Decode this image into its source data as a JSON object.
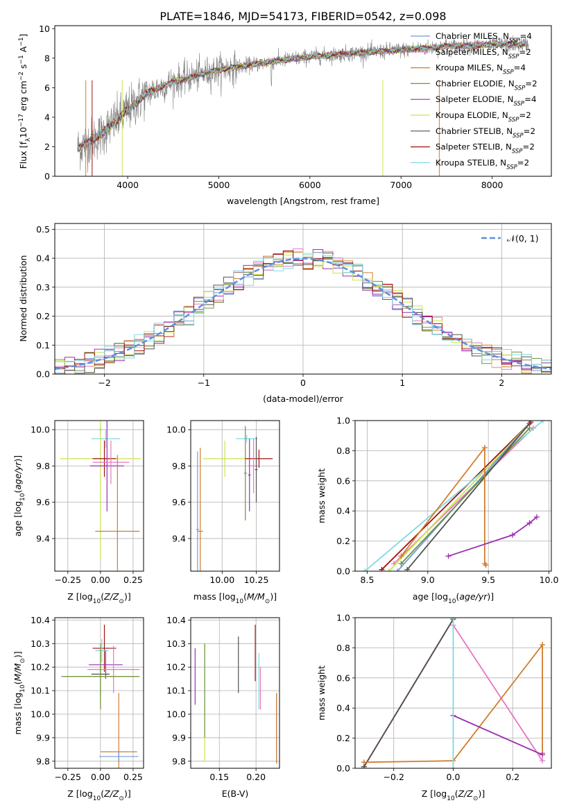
{
  "title": "PLATE=1846, MJD=54173, FIBERID=0542, z=0.098",
  "colors": {
    "Chabrier MILES": "#6f9bd8",
    "Salpeter MILES": "#e377c2",
    "Kroupa MILES": "#d07c2c",
    "Chabrier ELODIE": "#6f8f3f",
    "Salpeter ELODIE": "#9b2fb0",
    "Kroupa ELODIE": "#c8e64a",
    "Chabrier STELIB": "#505050",
    "Salpeter STELIB": "#a01010",
    "Kroupa STELIB": "#80d8e0",
    "data": "#808080",
    "normal": "#5b8fe0"
  },
  "legend_spectrum": [
    {
      "name": "Chabrier MILES",
      "nssp": "4"
    },
    {
      "name": "Salpeter MILES",
      "nssp": "2"
    },
    {
      "name": "Kroupa MILES",
      "nssp": "4"
    },
    {
      "name": "Chabrier ELODIE",
      "nssp": "2"
    },
    {
      "name": "Salpeter ELODIE",
      "nssp": "4"
    },
    {
      "name": "Kroupa ELODIE",
      "nssp": "2"
    },
    {
      "name": "Chabrier STELIB",
      "nssp": "2"
    },
    {
      "name": "Salpeter STELIB",
      "nssp": "2"
    },
    {
      "name": "Kroupa STELIB",
      "nssp": "2"
    }
  ],
  "chart_data": [
    {
      "id": "spectrum",
      "type": "line",
      "xlabel": "wavelength [Angstrom, rest frame]",
      "ylabel": "Flux [f_λ 10^-17 erg cm^-2 s^-1 A^-1]",
      "xlim": [
        3200,
        8650
      ],
      "ylim": [
        0,
        10.2
      ],
      "xticks": [
        4000,
        5000,
        6000,
        7000,
        8000
      ],
      "yticks": [
        0,
        2,
        4,
        6,
        8,
        10
      ],
      "grid": false,
      "legend_position": "right",
      "continuum": {
        "x": [
          3450,
          3700,
          3950,
          4200,
          4500,
          5000,
          5500,
          6000,
          6500,
          7000,
          7500,
          8000,
          8400
        ],
        "y": [
          1.9,
          2.8,
          4.2,
          5.6,
          6.4,
          7.2,
          7.7,
          8.1,
          8.35,
          8.55,
          8.8,
          8.9,
          8.95
        ]
      }
    },
    {
      "id": "residuals",
      "type": "area",
      "xlabel": "(data-model)/error",
      "ylabel": "Normed distribution",
      "xlim": [
        -2.5,
        2.5
      ],
      "ylim": [
        0,
        0.52
      ],
      "xticks": [
        -2,
        -1,
        0,
        1,
        2
      ],
      "yticks": [
        0.0,
        0.1,
        0.2,
        0.3,
        0.4,
        0.5
      ],
      "grid": true,
      "legend_position": "top-right",
      "legend": "𝒩(0, 1)",
      "bin_width": 0.1
    },
    {
      "id": "age_vs_Z",
      "type": "scatter",
      "xlabel": "Z [log10(Z/Z⊙)]",
      "ylabel": "age  [log10(age/yr)]",
      "xlim": [
        -0.35,
        0.33
      ],
      "ylim": [
        9.22,
        10.05
      ],
      "xticks": [
        -0.25,
        0.0,
        0.25
      ],
      "yticks": [
        9.4,
        9.6,
        9.8,
        10.0
      ],
      "grid": true,
      "points": [
        {
          "model": "Chabrier MILES",
          "x": 0.0,
          "xerr": 0.01,
          "y": 10.0,
          "yerr": 0.02
        },
        {
          "model": "Kroupa STELIB",
          "x": 0.04,
          "xerr": 0.11,
          "y": 9.95,
          "yerr": 0.05
        },
        {
          "model": "Kroupa ELODIE",
          "x": 0.0,
          "xerr": 0.31,
          "y": 9.84,
          "yerr": 0.56
        },
        {
          "model": "Salpeter STELIB",
          "x": 0.03,
          "xerr": 0.09,
          "y": 9.84,
          "yerr": 0.1
        },
        {
          "model": "Salpeter ELODIE",
          "x": 0.05,
          "xerr": 0.13,
          "y": 9.8,
          "yerr": 0.25
        },
        {
          "model": "Salpeter MILES",
          "x": 0.08,
          "xerr": 0.14,
          "y": 9.82,
          "yerr": 0.12
        },
        {
          "model": "Kroupa MILES",
          "x": 0.13,
          "xerr": 0.17,
          "y": 9.44,
          "yerr": 0.42
        }
      ]
    },
    {
      "id": "age_vs_mass",
      "type": "scatter",
      "xlabel": "mass [log10(M/M⊙)]",
      "ylabel": "",
      "xlim": [
        9.77,
        10.42
      ],
      "ylim": [
        9.22,
        10.05
      ],
      "xticks": [
        10.0,
        10.25
      ],
      "yticks": [
        9.4,
        9.6,
        9.8,
        10.0
      ],
      "grid": true,
      "points": [
        {
          "model": "Chabrier MILES",
          "x": 9.82,
          "xerr": 0.01,
          "y": 9.45,
          "yerr": 0.43
        },
        {
          "model": "Kroupa MILES",
          "x": 9.84,
          "xerr": 0.02,
          "y": 9.44,
          "yerr": 0.46
        },
        {
          "model": "Kroupa ELODIE",
          "x": 10.02,
          "xerr": 0.16,
          "y": 9.84,
          "yerr": 0.1
        },
        {
          "model": "Kroupa STELIB",
          "x": 10.18,
          "xerr": 0.08,
          "y": 9.95,
          "yerr": 0.02
        },
        {
          "model": "Chabrier ELODIE",
          "x": 10.17,
          "xerr": 0.01,
          "y": 9.76,
          "yerr": 0.26
        },
        {
          "model": "Salpeter STELIB",
          "x": 10.27,
          "xerr": 0.1,
          "y": 9.84,
          "yerr": 0.05
        },
        {
          "model": "Salpeter ELODIE",
          "x": 10.2,
          "xerr": 0.01,
          "y": 9.75,
          "yerr": 0.2
        },
        {
          "model": "Salpeter MILES",
          "x": 10.23,
          "xerr": 0.04,
          "y": 9.8,
          "yerr": 0.15
        },
        {
          "model": "Chabrier STELIB",
          "x": 10.25,
          "xerr": 0.01,
          "y": 9.78,
          "yerr": 0.18
        }
      ]
    },
    {
      "id": "massweight_vs_age",
      "type": "line",
      "xlabel": "age  [log10(age/yr)]",
      "ylabel": "mass weight",
      "xlim": [
        8.4,
        10.02
      ],
      "ylim": [
        0,
        1
      ],
      "xticks": [
        8.5,
        9.0,
        9.5,
        10.0
      ],
      "yticks": [
        0.0,
        0.2,
        0.4,
        0.6,
        0.8,
        1.0
      ],
      "grid": true,
      "series": [
        {
          "model": "Salpeter STELIB",
          "x": [
            8.62,
            9.85
          ],
          "y": [
            0.01,
            0.99
          ]
        },
        {
          "model": "Salpeter MILES",
          "x": [
            8.72,
            9.87
          ],
          "y": [
            0.05,
            0.95
          ]
        },
        {
          "model": "Kroupa STELIB",
          "x": [
            8.48,
            9.95
          ],
          "y": [
            0.0,
            1.0
          ]
        },
        {
          "model": "Kroupa ELODIE",
          "x": [
            8.68,
            9.84
          ],
          "y": [
            0.0,
            0.98
          ]
        },
        {
          "model": "Chabrier MILES",
          "x": [
            8.75,
            9.84
          ],
          "y": [
            0.0,
            0.98
          ]
        },
        {
          "model": "Chabrier ELODIE",
          "x": [
            8.78,
            9.84
          ],
          "y": [
            0.05,
            0.95
          ]
        },
        {
          "model": "Chabrier STELIB",
          "x": [
            8.83,
            9.84
          ],
          "y": [
            0.01,
            0.98
          ]
        },
        {
          "model": "Kroupa MILES",
          "x": [
            8.78,
            9.47,
            9.47,
            9.48
          ],
          "y": [
            0.1,
            0.82,
            0.05,
            0.04
          ]
        },
        {
          "model": "Salpeter ELODIE",
          "x": [
            9.17,
            9.7,
            9.84,
            9.9
          ],
          "y": [
            0.1,
            0.24,
            0.32,
            0.36
          ]
        }
      ]
    },
    {
      "id": "mass_vs_Z",
      "type": "scatter",
      "xlabel": "Z [log10(Z/Z⊙)]",
      "ylabel": "mass [log10(M/M⊙)]",
      "xlim": [
        -0.35,
        0.33
      ],
      "ylim": [
        9.77,
        10.41
      ],
      "xticks": [
        -0.25,
        0.0,
        0.25
      ],
      "yticks": [
        9.8,
        9.9,
        10.0,
        10.1,
        10.2,
        10.3,
        10.4
      ],
      "grid": true,
      "points": [
        {
          "model": "Salpeter STELIB",
          "x": 0.03,
          "xerr": 0.09,
          "y": 10.28,
          "yerr": 0.1
        },
        {
          "model": "Kroupa STELIB",
          "x": 0.01,
          "xerr": 0.05,
          "y": 10.27,
          "yerr": 0.05
        },
        {
          "model": "Salpeter ELODIE",
          "x": 0.04,
          "xerr": 0.13,
          "y": 10.21,
          "yerr": 0.06
        },
        {
          "model": "Salpeter MILES",
          "x": 0.1,
          "xerr": 0.2,
          "y": 10.19,
          "yerr": 0.1
        },
        {
          "model": "Chabrier STELIB",
          "x": 0.0,
          "xerr": 0.07,
          "y": 10.17,
          "yerr": 0.1
        },
        {
          "model": "Kroupa ELODIE",
          "x": 0.0,
          "xerr": 0.28,
          "y": 10.16,
          "yerr": 0.12
        },
        {
          "model": "Chabrier ELODIE",
          "x": 0.0,
          "xerr": 0.3,
          "y": 10.16,
          "yerr": 0.14
        },
        {
          "model": "Kroupa MILES",
          "x": 0.14,
          "xerr": 0.14,
          "y": 9.84,
          "yerr": 0.25
        },
        {
          "model": "Chabrier MILES",
          "x": 0.14,
          "xerr": 0.15,
          "y": 9.82,
          "yerr": 0.02
        }
      ]
    },
    {
      "id": "mass_vs_EBV",
      "type": "scatter",
      "xlabel": "E(B-V)",
      "ylabel": "",
      "xlim": [
        0.111,
        0.232
      ],
      "ylim": [
        9.77,
        10.41
      ],
      "xticks": [
        0.15,
        0.2
      ],
      "yticks": [
        9.8,
        9.9,
        10.0,
        10.1,
        10.2,
        10.3,
        10.4
      ],
      "grid": true,
      "points": [
        {
          "model": "Salpeter ELODIE",
          "x": 0.117,
          "y": 10.16,
          "yerr": 0.12
        },
        {
          "model": "Kroupa ELODIE",
          "x": 0.13,
          "y": 10.05,
          "yerr": 0.25
        },
        {
          "model": "Chabrier ELODIE",
          "x": 0.13,
          "y": 10.1,
          "yerr": 0.2
        },
        {
          "model": "Chabrier STELIB",
          "x": 0.176,
          "y": 10.21,
          "yerr": 0.12
        },
        {
          "model": "Salpeter STELIB",
          "x": 0.199,
          "y": 10.26,
          "yerr": 0.12
        },
        {
          "model": "Salpeter MILES",
          "x": 0.206,
          "y": 10.11,
          "yerr": 0.09
        },
        {
          "model": "Kroupa STELIB",
          "x": 0.204,
          "y": 10.14,
          "yerr": 0.12
        },
        {
          "model": "Chabrier MILES",
          "x": 0.228,
          "y": 9.94,
          "yerr": 0.15
        },
        {
          "model": "Kroupa MILES",
          "x": 0.228,
          "y": 9.94,
          "yerr": 0.15
        }
      ]
    },
    {
      "id": "massweight_vs_Z",
      "type": "line",
      "xlabel": "Z [log10(Z/Z⊙)]",
      "ylabel": "mass weight",
      "xlim": [
        -0.33,
        0.33
      ],
      "ylim": [
        0,
        1
      ],
      "xticks": [
        -0.2,
        0.0,
        0.2
      ],
      "yticks": [
        0.0,
        0.2,
        0.4,
        0.6,
        0.8,
        1.0
      ],
      "grid": true,
      "series": [
        {
          "model": "Salpeter STELIB",
          "x": [
            -0.3,
            0.0
          ],
          "y": [
            0.01,
            0.99
          ]
        },
        {
          "model": "Chabrier STELIB",
          "x": [
            -0.3,
            0.0
          ],
          "y": [
            0.01,
            0.99
          ]
        },
        {
          "model": "Salpeter MILES",
          "x": [
            0.0,
            0.3
          ],
          "y": [
            0.95,
            0.05
          ]
        },
        {
          "model": "Kroupa MILES",
          "x": [
            -0.3,
            0.0,
            0.3,
            0.3
          ],
          "y": [
            0.04,
            0.05,
            0.82,
            0.1
          ]
        },
        {
          "model": "Salpeter ELODIE",
          "x": [
            0.0,
            0.3
          ],
          "y": [
            0.35,
            0.09
          ]
        },
        {
          "model": "Kroupa STELIB",
          "x": [
            0.0,
            0.0
          ],
          "y": [
            0.0,
            1.0
          ]
        }
      ]
    }
  ]
}
